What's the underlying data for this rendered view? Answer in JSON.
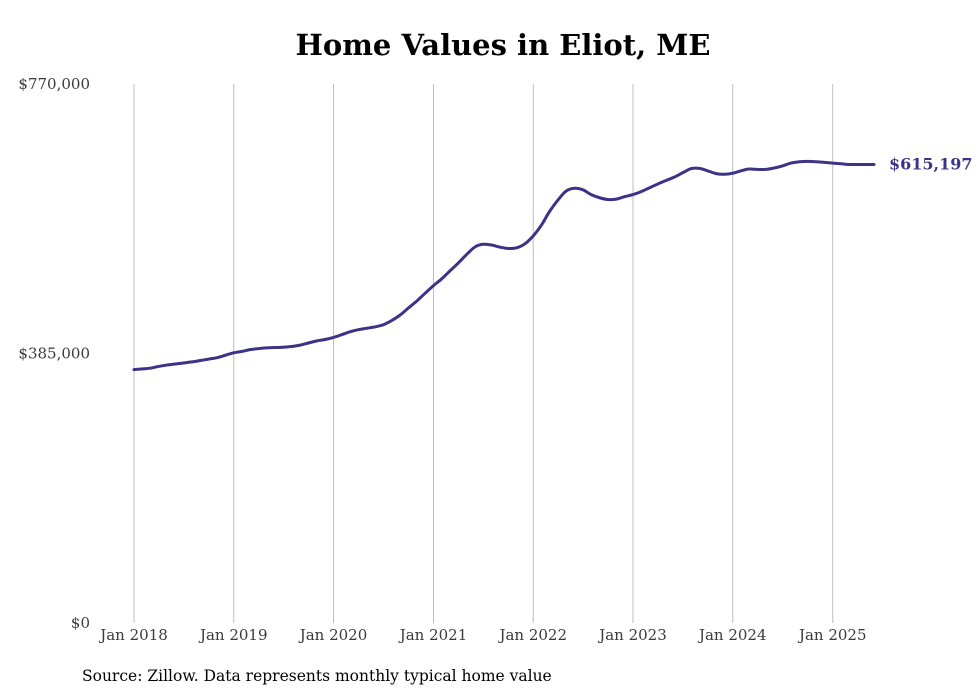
{
  "colors": {
    "line": "#3b3486",
    "grid": "#bdbdbd",
    "background": "#ffffff",
    "text": "#000000"
  },
  "chart_data": {
    "type": "line",
    "title": "Home Values in Eliot, ME",
    "source": "Source: Zillow. Data represents monthly typical home value",
    "xlabel": "",
    "ylabel": "",
    "ylim": [
      0,
      770000
    ],
    "y_ticks": [
      {
        "value": 0,
        "label": "$0"
      },
      {
        "value": 385000,
        "label": "$385,000"
      },
      {
        "value": 770000,
        "label": "$770,000"
      }
    ],
    "x_ticks": [
      {
        "date": "2018-01",
        "label": "Jan 2018"
      },
      {
        "date": "2019-01",
        "label": "Jan 2019"
      },
      {
        "date": "2020-01",
        "label": "Jan 2020"
      },
      {
        "date": "2021-01",
        "label": "Jan 2021"
      },
      {
        "date": "2022-01",
        "label": "Jan 2022"
      },
      {
        "date": "2023-01",
        "label": "Jan 2023"
      },
      {
        "date": "2024-01",
        "label": "Jan 2024"
      },
      {
        "date": "2025-01",
        "label": "Jan 2025"
      }
    ],
    "vertical_grid": true,
    "horizontal_grid": false,
    "end_label": "$615,197",
    "series": [
      {
        "x": [
          "2018-01",
          "2018-02",
          "2018-03",
          "2018-04",
          "2018-05",
          "2018-06",
          "2018-07",
          "2018-08",
          "2018-09",
          "2018-10",
          "2018-11",
          "2018-12",
          "2019-01",
          "2019-02",
          "2019-03",
          "2019-04",
          "2019-05",
          "2019-06",
          "2019-07",
          "2019-08",
          "2019-09",
          "2019-10",
          "2019-11",
          "2019-12",
          "2020-01",
          "2020-02",
          "2020-03",
          "2020-04",
          "2020-05",
          "2020-06",
          "2020-07",
          "2020-08",
          "2020-09",
          "2020-10",
          "2020-11",
          "2020-12",
          "2021-01",
          "2021-02",
          "2021-03",
          "2021-04",
          "2021-05",
          "2021-06",
          "2021-07",
          "2021-08",
          "2021-09",
          "2021-10",
          "2021-11",
          "2021-12",
          "2022-01",
          "2022-02",
          "2022-03",
          "2022-04",
          "2022-05",
          "2022-06",
          "2022-07",
          "2022-08",
          "2022-09",
          "2022-10",
          "2022-11",
          "2022-12",
          "2023-01",
          "2023-02",
          "2023-03",
          "2023-04",
          "2023-05",
          "2023-06",
          "2023-07",
          "2023-08",
          "2023-09",
          "2023-10",
          "2023-11",
          "2023-12",
          "2024-01",
          "2024-02",
          "2024-03",
          "2024-04",
          "2024-05",
          "2024-06",
          "2024-07",
          "2024-08",
          "2024-09",
          "2024-10",
          "2024-11",
          "2024-12",
          "2025-01",
          "2025-02",
          "2025-03",
          "2025-04",
          "2025-05",
          "2025-06"
        ],
        "values": [
          362000,
          363000,
          364000,
          366500,
          368500,
          370000,
          371500,
          373000,
          375000,
          377000,
          379000,
          382500,
          386000,
          388000,
          390500,
          392000,
          393000,
          393500,
          394000,
          395000,
          397000,
          400000,
          403000,
          405000,
          408000,
          412000,
          416000,
          419000,
          421000,
          423000,
          426000,
          432000,
          440000,
          450000,
          460000,
          471000,
          482000,
          492000,
          502500,
          514000,
          526000,
          537000,
          541000,
          540000,
          537000,
          535000,
          536000,
          541500,
          553000,
          569000,
          587500,
          604000,
          617000,
          621000,
          619000,
          612000,
          607500,
          605000,
          605500,
          609000,
          612000,
          616500,
          621500,
          627000,
          632000,
          637000,
          643000,
          649000,
          649500,
          646000,
          642000,
          641000,
          642500,
          646000,
          648500,
          648000,
          648000,
          650000,
          653000,
          657000,
          659000,
          659500,
          659000,
          658000,
          657000,
          656000,
          655000,
          655000,
          655000,
          615197
        ]
      }
    ]
  }
}
